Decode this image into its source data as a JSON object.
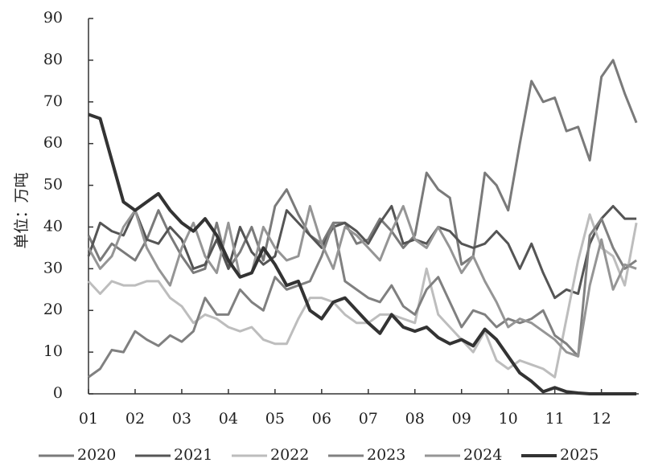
{
  "chart_data": {
    "type": "line",
    "y_label": "单位：万吨",
    "x": [
      1,
      1.25,
      1.5,
      1.75,
      2,
      2.25,
      2.5,
      2.75,
      3,
      3.25,
      3.5,
      3.75,
      4,
      4.25,
      4.5,
      4.75,
      5,
      5.25,
      5.5,
      5.75,
      6,
      6.25,
      6.5,
      6.75,
      7,
      7.25,
      7.5,
      7.75,
      8,
      8.25,
      8.5,
      8.75,
      9,
      9.25,
      9.5,
      9.75,
      10,
      10.25,
      10.5,
      10.75,
      11,
      11.25,
      11.5,
      11.75,
      12,
      12.25,
      12.5,
      12.75
    ],
    "xlim": [
      1,
      12.8
    ],
    "xticks": [
      {
        "value": 1,
        "label": "01"
      },
      {
        "value": 2,
        "label": "02"
      },
      {
        "value": 3,
        "label": "03"
      },
      {
        "value": 4,
        "label": "04"
      },
      {
        "value": 5,
        "label": "05"
      },
      {
        "value": 6,
        "label": "06"
      },
      {
        "value": 7,
        "label": "07"
      },
      {
        "value": 8,
        "label": "08"
      },
      {
        "value": 9,
        "label": "09"
      },
      {
        "value": 10,
        "label": "10"
      },
      {
        "value": 11,
        "label": "11"
      },
      {
        "value": 12,
        "label": "12"
      }
    ],
    "ylim": [
      0,
      90
    ],
    "yticks": [
      0,
      10,
      20,
      30,
      40,
      50,
      60,
      70,
      80,
      90
    ],
    "series": [
      {
        "name": "2020",
        "color": "#7a7a7a",
        "width": 3,
        "values": [
          38,
          32,
          36,
          34,
          32,
          37,
          44,
          38,
          33,
          29,
          30,
          41,
          30,
          34,
          40,
          32,
          45,
          49,
          43,
          38,
          36,
          41,
          41,
          36,
          37,
          42,
          39,
          35,
          38,
          53,
          49,
          47,
          31,
          33,
          53,
          50,
          44,
          60,
          75,
          70,
          71,
          63,
          64,
          56,
          76,
          80,
          72,
          65
        ]
      },
      {
        "name": "2021",
        "color": "#555555",
        "width": 3,
        "values": [
          33,
          41,
          39,
          38,
          44,
          37,
          36,
          40,
          37,
          30,
          31,
          37,
          30,
          40,
          34,
          31,
          33,
          44,
          41,
          38,
          35,
          40,
          41,
          39,
          36,
          41,
          45,
          36,
          37,
          36,
          40,
          39,
          36,
          35,
          36,
          39,
          36,
          30,
          36,
          29,
          23,
          25,
          24,
          36,
          42,
          45,
          42,
          42
        ]
      },
      {
        "name": "2022",
        "color": "#bdbdbd",
        "width": 3,
        "values": [
          27,
          24,
          27,
          26,
          26,
          27,
          27,
          23,
          21,
          17,
          19,
          18,
          16,
          15,
          16,
          13,
          12,
          12,
          18,
          23,
          23,
          22,
          19,
          17,
          17,
          19,
          19,
          18,
          17,
          30,
          19,
          16,
          13,
          10,
          15,
          8,
          6,
          8,
          7,
          6,
          4,
          18,
          32,
          43,
          35,
          33,
          26,
          41
        ]
      },
      {
        "name": "2023",
        "color": "#808080",
        "width": 3,
        "values": [
          4,
          6,
          10.5,
          10,
          15,
          13,
          11.5,
          14,
          12.5,
          15,
          23,
          19,
          19,
          25,
          22,
          20,
          28,
          25,
          26,
          27,
          33,
          41,
          27,
          25,
          23,
          22,
          26,
          21,
          19,
          25,
          28,
          22,
          16,
          20,
          19,
          16,
          18,
          17,
          18,
          20,
          14,
          12,
          9,
          38,
          42,
          35,
          30,
          32
        ]
      },
      {
        "name": "2024",
        "color": "#959595",
        "width": 3,
        "values": [
          35,
          30,
          33,
          40,
          44,
          35,
          30,
          26,
          35,
          41,
          33,
          29,
          41,
          28,
          29,
          40,
          35,
          32,
          33,
          45,
          36,
          30,
          40,
          38,
          35,
          32,
          39,
          45,
          37,
          35,
          40,
          35,
          29,
          33,
          27,
          22,
          16,
          18,
          17,
          15,
          13,
          10,
          9,
          26,
          37,
          25,
          31,
          30
        ]
      },
      {
        "name": "2025",
        "color": "#333333",
        "width": 4,
        "values": [
          67,
          66,
          56,
          46,
          44,
          46,
          48,
          44,
          41,
          39,
          42,
          38,
          32,
          28,
          29,
          35,
          31,
          26,
          27,
          20,
          18,
          22,
          23,
          20,
          17,
          14.5,
          19,
          16,
          15,
          16,
          13.5,
          12,
          13,
          11.5,
          15.5,
          13,
          9,
          5,
          3,
          0.5,
          1.5,
          0.5,
          0.2,
          0,
          0,
          0,
          0,
          0
        ]
      }
    ]
  }
}
